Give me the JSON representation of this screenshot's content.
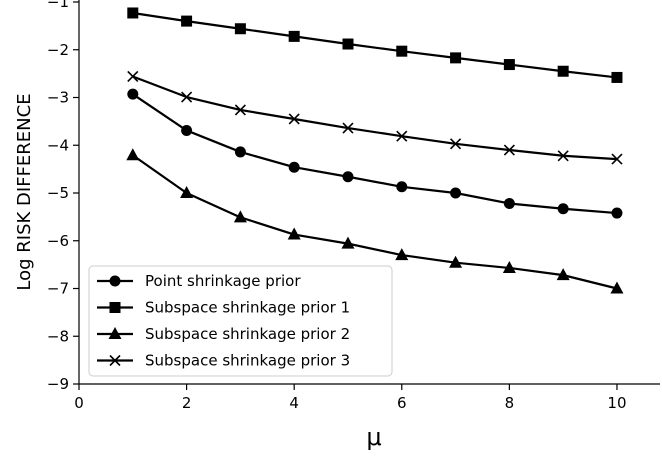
{
  "chart_data": {
    "type": "line",
    "title": "",
    "xlabel": "μ",
    "ylabel": "Log RISK DIFFERENCE",
    "xlim": [
      0,
      10.8
    ],
    "ylim": [
      -9,
      -1
    ],
    "xticks": [
      0,
      2,
      4,
      6,
      8,
      10
    ],
    "yticks": [
      -9,
      -8,
      -7,
      -6,
      -5,
      -4,
      -3,
      -2,
      -1
    ],
    "x": [
      1,
      2,
      3,
      4,
      5,
      6,
      7,
      8,
      9,
      10
    ],
    "grid": false,
    "legend_position": "lower-left",
    "series": [
      {
        "name": "Point shrinkage prior",
        "marker": "circle",
        "values": [
          -2.93,
          -3.69,
          -4.14,
          -4.46,
          -4.66,
          -4.87,
          -5.0,
          -5.22,
          -5.33,
          -5.42
        ]
      },
      {
        "name": "Subspace shrinkage prior 1",
        "marker": "square",
        "values": [
          -1.23,
          -1.4,
          -1.56,
          -1.72,
          -1.88,
          -2.03,
          -2.17,
          -2.31,
          -2.45,
          -2.58
        ]
      },
      {
        "name": "Subspace shrinkage prior 2",
        "marker": "triangle",
        "values": [
          -4.21,
          -5.0,
          -5.51,
          -5.87,
          -6.06,
          -6.3,
          -6.46,
          -6.57,
          -6.72,
          -7.0
        ]
      },
      {
        "name": "Subspace shrinkage prior 3",
        "marker": "x",
        "values": [
          -2.56,
          -2.99,
          -3.26,
          -3.45,
          -3.64,
          -3.81,
          -3.97,
          -4.1,
          -4.22,
          -4.29
        ]
      }
    ],
    "line_color": "#000000"
  }
}
